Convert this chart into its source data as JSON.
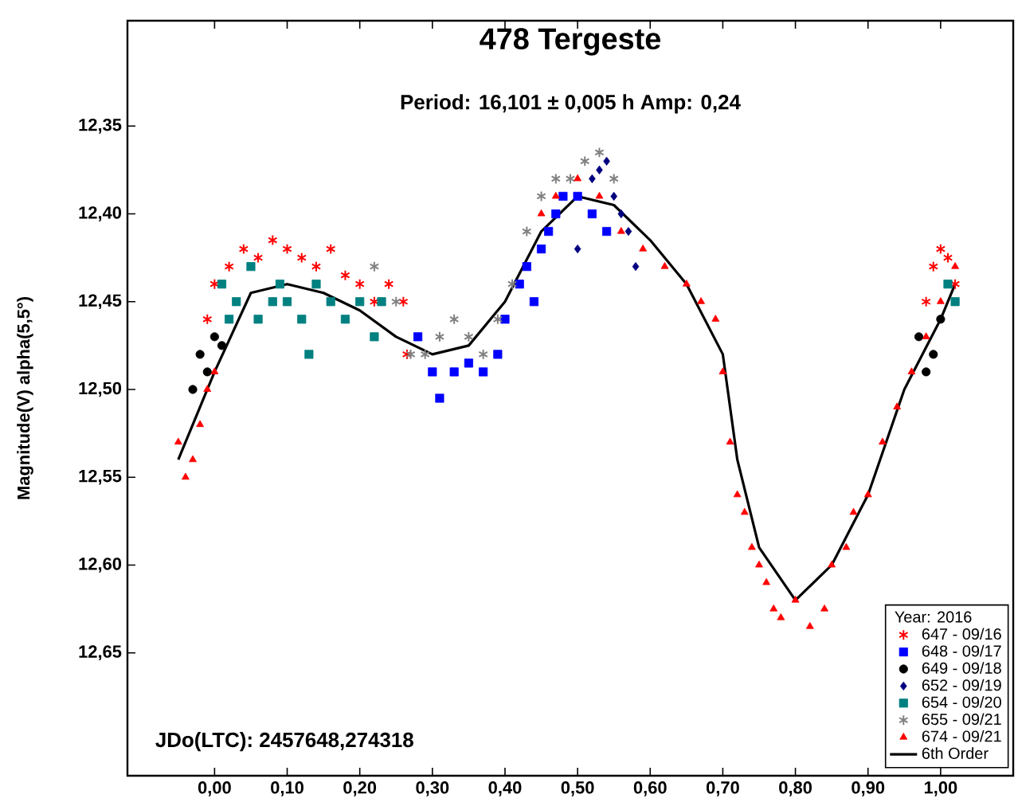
{
  "chart_data": {
    "type": "scatter",
    "title": "478 Tergeste",
    "subtitle": "Period: 16,101 ± 0,005 h   Amp: 0,24",
    "ylabel": "Magnitude(V) alpha(5,5°)",
    "legend_title": "Year: 2016",
    "annotations": [
      "JDo(LTC): 2457648,274318"
    ],
    "xlim": [
      -0.12,
      1.1
    ],
    "ylim": [
      12.72,
      12.29
    ],
    "xticks": [
      {
        "value": 0.0,
        "label": "0,00"
      },
      {
        "value": 0.1,
        "label": "0,10"
      },
      {
        "value": 0.2,
        "label": "0,20"
      },
      {
        "value": 0.3,
        "label": "0,30"
      },
      {
        "value": 0.4,
        "label": "0,40"
      },
      {
        "value": 0.5,
        "label": "0,50"
      },
      {
        "value": 0.6,
        "label": "0,60"
      },
      {
        "value": 0.7,
        "label": "0,70"
      },
      {
        "value": 0.8,
        "label": "0,80"
      },
      {
        "value": 0.9,
        "label": "0,90"
      },
      {
        "value": 1.0,
        "label": "1,00"
      }
    ],
    "yticks": [
      {
        "value": 12.35,
        "label": "12,35"
      },
      {
        "value": 12.4,
        "label": "12,40"
      },
      {
        "value": 12.45,
        "label": "12,45"
      },
      {
        "value": 12.5,
        "label": "12,50"
      },
      {
        "value": 12.55,
        "label": "12,55"
      },
      {
        "value": 12.6,
        "label": "12,60"
      },
      {
        "value": 12.65,
        "label": "12,65"
      }
    ],
    "grid": false,
    "legend": "bottom right",
    "series": [
      {
        "name": "647 - 09/16",
        "color": "#ff0000",
        "marker": "cross",
        "x": [
          -0.01,
          0.0,
          0.02,
          0.04,
          0.06,
          0.08,
          0.1,
          0.12,
          0.14,
          0.16,
          0.18,
          0.2,
          0.22,
          0.24,
          0.26,
          0.265,
          0.98,
          0.99,
          1.0,
          1.01,
          1.02
        ],
        "values": [
          12.46,
          12.44,
          12.43,
          12.42,
          12.425,
          12.415,
          12.42,
          12.425,
          12.43,
          12.42,
          12.435,
          12.44,
          12.45,
          12.44,
          12.45,
          12.48,
          12.45,
          12.43,
          12.42,
          12.425,
          12.44
        ]
      },
      {
        "name": "648 - 09/17",
        "color": "#0000ff",
        "marker": "square",
        "x": [
          0.28,
          0.3,
          0.31,
          0.33,
          0.35,
          0.37,
          0.39,
          0.4,
          0.42,
          0.43,
          0.44,
          0.45,
          0.46,
          0.47,
          0.48,
          0.5,
          0.52,
          0.54
        ],
        "values": [
          12.47,
          12.49,
          12.505,
          12.49,
          12.485,
          12.49,
          12.48,
          12.46,
          12.44,
          12.43,
          12.45,
          12.42,
          12.41,
          12.4,
          12.39,
          12.39,
          12.4,
          12.41
        ]
      },
      {
        "name": "649 - 09/18",
        "color": "#000000",
        "marker": "circle",
        "x": [
          -0.03,
          -0.02,
          -0.01,
          0.0,
          0.01,
          0.97,
          0.98,
          0.99,
          1.0
        ],
        "values": [
          12.5,
          12.48,
          12.49,
          12.47,
          12.475,
          12.47,
          12.49,
          12.48,
          12.46
        ]
      },
      {
        "name": "652 - 09/19",
        "color": "#000080",
        "marker": "diamond",
        "x": [
          0.5,
          0.52,
          0.53,
          0.54,
          0.55,
          0.56,
          0.57,
          0.58
        ],
        "values": [
          12.42,
          12.38,
          12.375,
          12.37,
          12.39,
          12.4,
          12.41,
          12.43
        ]
      },
      {
        "name": "654 - 09/20",
        "color": "#008080",
        "marker": "square",
        "x": [
          0.01,
          0.02,
          0.03,
          0.05,
          0.06,
          0.08,
          0.09,
          0.1,
          0.12,
          0.13,
          0.14,
          0.16,
          0.18,
          0.2,
          0.22,
          0.23,
          1.01,
          1.02
        ],
        "values": [
          12.44,
          12.46,
          12.45,
          12.43,
          12.46,
          12.45,
          12.44,
          12.45,
          12.46,
          12.48,
          12.44,
          12.45,
          12.46,
          12.45,
          12.47,
          12.45,
          12.44,
          12.45
        ]
      },
      {
        "name": "655 - 09/21",
        "color": "#808080",
        "marker": "cross",
        "x": [
          0.22,
          0.25,
          0.27,
          0.29,
          0.31,
          0.33,
          0.35,
          0.37,
          0.39,
          0.41,
          0.43,
          0.45,
          0.47,
          0.49,
          0.51,
          0.53,
          0.55
        ],
        "values": [
          12.43,
          12.45,
          12.48,
          12.48,
          12.47,
          12.46,
          12.47,
          12.48,
          12.46,
          12.44,
          12.41,
          12.39,
          12.38,
          12.38,
          12.37,
          12.365,
          12.38
        ]
      },
      {
        "name": "674 - 09/21",
        "color": "#ff0000",
        "marker": "triangle",
        "x": [
          -0.05,
          -0.04,
          -0.03,
          -0.02,
          -0.01,
          0.0,
          0.45,
          0.47,
          0.5,
          0.53,
          0.56,
          0.59,
          0.62,
          0.65,
          0.67,
          0.69,
          0.7,
          0.71,
          0.72,
          0.73,
          0.74,
          0.75,
          0.76,
          0.77,
          0.78,
          0.8,
          0.82,
          0.84,
          0.85,
          0.87,
          0.88,
          0.9,
          0.92,
          0.94,
          0.96,
          0.98,
          1.0,
          1.02
        ],
        "values": [
          12.53,
          12.55,
          12.54,
          12.52,
          12.5,
          12.49,
          12.4,
          12.39,
          12.38,
          12.39,
          12.41,
          12.42,
          12.43,
          12.44,
          12.45,
          12.46,
          12.49,
          12.53,
          12.56,
          12.57,
          12.59,
          12.6,
          12.61,
          12.625,
          12.63,
          12.62,
          12.635,
          12.625,
          12.6,
          12.59,
          12.57,
          12.56,
          12.53,
          12.51,
          12.49,
          12.47,
          12.45,
          12.43
        ]
      },
      {
        "name": "6th Order",
        "type": "line",
        "color": "#000000",
        "marker": "none",
        "x": [
          -0.05,
          0.0,
          0.05,
          0.1,
          0.15,
          0.2,
          0.25,
          0.3,
          0.35,
          0.4,
          0.45,
          0.5,
          0.55,
          0.6,
          0.65,
          0.7,
          0.72,
          0.75,
          0.8,
          0.85,
          0.9,
          0.95,
          1.0,
          1.02
        ],
        "values": [
          12.54,
          12.49,
          12.445,
          12.44,
          12.445,
          12.455,
          12.47,
          12.48,
          12.475,
          12.45,
          12.41,
          12.39,
          12.395,
          12.415,
          12.44,
          12.48,
          12.54,
          12.59,
          12.62,
          12.6,
          12.56,
          12.5,
          12.46,
          12.44
        ]
      }
    ]
  }
}
